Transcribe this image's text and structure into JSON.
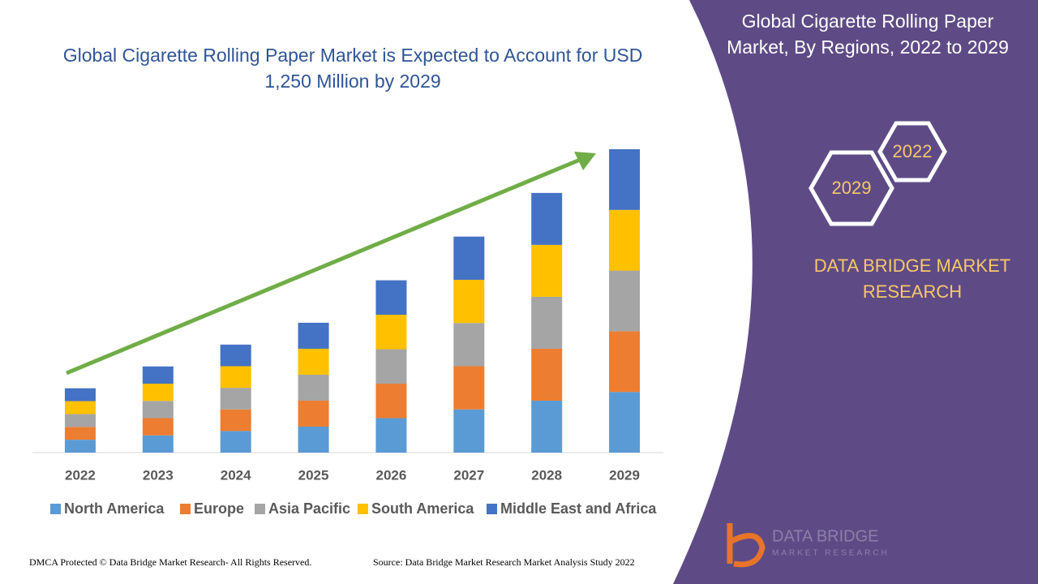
{
  "chart_data": {
    "type": "bar",
    "stacked": true,
    "title": "Global Cigarette Rolling Paper Market is Expected to Account for USD 1,250 Million by 2029",
    "categories": [
      "2022",
      "2023",
      "2024",
      "2025",
      "2026",
      "2027",
      "2028",
      "2029"
    ],
    "series": [
      {
        "name": "North America",
        "color": "#5b9bd5",
        "values": [
          53,
          71,
          89,
          107,
          142,
          178,
          214,
          250
        ]
      },
      {
        "name": "Europe",
        "color": "#ed7d31",
        "values": [
          53,
          71,
          89,
          107,
          142,
          178,
          214,
          250
        ]
      },
      {
        "name": "Asia Pacific",
        "color": "#a5a5a5",
        "values": [
          53,
          71,
          89,
          107,
          142,
          178,
          214,
          250
        ]
      },
      {
        "name": "South America",
        "color": "#ffc000",
        "values": [
          53,
          71,
          89,
          107,
          142,
          178,
          214,
          250
        ]
      },
      {
        "name": "Middle East and Africa",
        "color": "#4472c4",
        "values": [
          53,
          71,
          89,
          107,
          142,
          178,
          214,
          250
        ]
      }
    ],
    "ylim": [
      0,
      1250
    ]
  },
  "panel": {
    "title": "Global Cigarette Rolling Paper Market, By Regions, 2022 to 2029",
    "hexagons": [
      "2022",
      "2029"
    ],
    "brand": "DATA BRIDGE MARKET RESEARCH"
  },
  "logo": {
    "name": "DATA BRIDGE",
    "tagline": "MARKET RESEARCH"
  },
  "footer": {
    "copyright": "DMCA Protected © Data Bridge Market Research- All Rights Reserved.",
    "source": "Source: Data Bridge Market Research Market Analysis Study 2022"
  }
}
